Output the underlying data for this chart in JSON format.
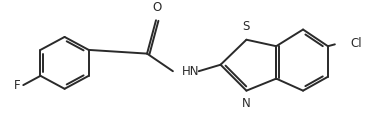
{
  "background": "#ffffff",
  "line_color": "#2a2a2a",
  "line_width": 1.4,
  "font_size": 8.5,
  "label_F": "F",
  "label_O": "O",
  "label_HN": "HN",
  "label_S": "S",
  "label_N": "N",
  "label_Cl": "Cl",
  "figsize": [
    3.65,
    1.24
  ],
  "dpi": 100
}
